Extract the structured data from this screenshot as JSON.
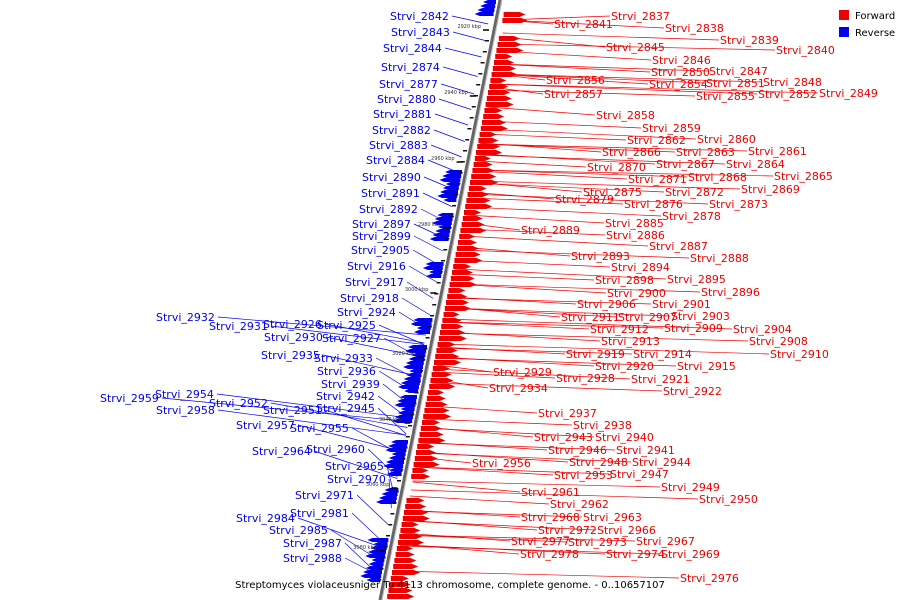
{
  "caption": "Streptomyces violaceusniger Tu 4113 chromosome, complete genome. - 0..10657107",
  "legend": [
    {
      "label": "Forward",
      "color": "#ee0000"
    },
    {
      "label": "Reverse",
      "color": "#0000ee"
    }
  ],
  "ticks": [
    "2920 kbp",
    "2940 kbp",
    "2960 kbp",
    "2980 kbp",
    "3000 kbp",
    "3020 kbp",
    "3040 kbp",
    "3060 kbp",
    "3080 kbp"
  ],
  "reverse_genes": [
    "Strvi_2842",
    "Strvi_2843",
    "Strvi_2844",
    "Strvi_2874",
    "Strvi_2877",
    "Strvi_2880",
    "Strvi_2881",
    "Strvi_2882",
    "Strvi_2883",
    "Strvi_2884",
    "Strvi_2890",
    "Strvi_2891",
    "Strvi_2892",
    "Strvi_2897",
    "Strvi_2899",
    "Strvi_2905",
    "Strvi_2916",
    "Strvi_2917",
    "Strvi_2918",
    "Strvi_2924",
    "Strvi_2932",
    "Strvi_2931",
    "Strvi_2926",
    "Strvi_2925",
    "Strvi_2930",
    "Strvi_2927",
    "Strvi_2935",
    "Strvi_2933",
    "Strvi_2936",
    "Strvi_2939",
    "Strvi_2942",
    "Strvi_2959",
    "Strvi_2954",
    "Strvi_2952",
    "Strvi_2958",
    "Strvi_2951",
    "Strvi_2945",
    "Strvi_2957",
    "Strvi_2955",
    "Strvi_2964",
    "Strvi_2960",
    "Strvi_2965",
    "Strvi_2970",
    "Strvi_2971",
    "Strvi_2984",
    "Strvi_2981",
    "Strvi_2985",
    "Strvi_2987",
    "Strvi_2988"
  ],
  "forward_genes": [
    "Strvi_2837",
    "Strvi_2841",
    "Strvi_2838",
    "Strvi_2839",
    "Strvi_2840",
    "Strvi_2845",
    "Strvi_2846",
    "Strvi_2850",
    "Strvi_2847",
    "Strvi_2856",
    "Strvi_2854",
    "Strvi_2851",
    "Strvi_2848",
    "Strvi_2857",
    "Strvi_2855",
    "Strvi_2852",
    "Strvi_2849",
    "Strvi_2858",
    "Strvi_2859",
    "Strvi_2862",
    "Strvi_2860",
    "Strvi_2866",
    "Strvi_2863",
    "Strvi_2861",
    "Strvi_2870",
    "Strvi_2867",
    "Strvi_2864",
    "Strvi_2871",
    "Strvi_2868",
    "Strvi_2865",
    "Strvi_2875",
    "Strvi_2872",
    "Strvi_2869",
    "Strvi_2879",
    "Strvi_2876",
    "Strvi_2873",
    "Strvi_2878",
    "Strvi_2885",
    "Strvi_2889",
    "Strvi_2886",
    "Strvi_2887",
    "Strvi_2893",
    "Strvi_2888",
    "Strvi_2894",
    "Strvi_2898",
    "Strvi_2895",
    "Strvi_2900",
    "Strvi_2896",
    "Strvi_2906",
    "Strvi_2901",
    "Strvi_2911",
    "Strvi_2907",
    "Strvi_2903",
    "Strvi_2912",
    "Strvi_2909",
    "Strvi_2904",
    "Strvi_2913",
    "Strvi_2908",
    "Strvi_2919",
    "Strvi_2914",
    "Strvi_2910",
    "Strvi_2920",
    "Strvi_2915",
    "Strvi_2929",
    "Strvi_2928",
    "Strvi_2921",
    "Strvi_2934",
    "Strvi_2922",
    "Strvi_2937",
    "Strvi_2938",
    "Strvi_2943",
    "Strvi_2940",
    "Strvi_2946",
    "Strvi_2941",
    "Strvi_2956",
    "Strvi_2948",
    "Strvi_2944",
    "Strvi_2953",
    "Strvi_2947",
    "Strvi_2949",
    "Strvi_2961",
    "Strvi_2950",
    "Strvi_2962",
    "Strvi_2968",
    "Strvi_2963",
    "Strvi_2972",
    "Strvi_2966",
    "Strvi_2977",
    "Strvi_2973",
    "Strvi_2967",
    "Strvi_2978",
    "Strvi_2974",
    "Strvi_2969",
    "Strvi_2976"
  ]
}
